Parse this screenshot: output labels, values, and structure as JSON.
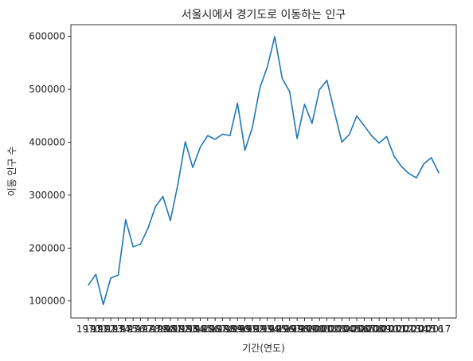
{
  "chart_data": {
    "type": "line",
    "title": "서울시에서 경기도로 이동하는 인구",
    "xlabel": "기간(연도)",
    "ylabel": "이동 인구 수",
    "x": [
      "1970",
      "1971",
      "1972",
      "1973",
      "1974",
      "1975",
      "1976",
      "1977",
      "1978",
      "1979",
      "1980",
      "1981",
      "1982",
      "1983",
      "1984",
      "1985",
      "1986",
      "1987",
      "1988",
      "1989",
      "1990",
      "1991",
      "1992",
      "1993",
      "1994",
      "1995",
      "1996",
      "1997",
      "1998",
      "1999",
      "2000",
      "2001",
      "2002",
      "2003",
      "2004",
      "2005",
      "2006",
      "2007",
      "2008",
      "2009",
      "2010",
      "2011",
      "2012",
      "2013",
      "2014",
      "2015",
      "2016",
      "2017"
    ],
    "series": [
      {
        "values": [
          130149,
          150313,
          93333,
          143234,
          149045,
          253705,
          202276,
          207722,
          237684,
          278411,
          297539,
          252073,
          320174,
          400875,
          352238,
          390265,
          412535,
          405495,
          415188,
          412535,
          473889,
          384714,
          428344,
          502584,
          542204,
          599411,
          520566,
          495454,
          407050,
          471841,
          435573,
          499575,
          516765,
          457656,
          400206,
          414621,
          449632,
          431075,
          412011,
          398420,
          410735,
          373771,
          354135,
          340801,
          332785,
          359337,
          370760,
          342433
        ]
      }
    ],
    "yticks": [
      100000,
      200000,
      300000,
      400000,
      500000,
      600000
    ],
    "ylim": [
      68000,
      622000
    ],
    "grid": false,
    "legend": "none",
    "line_color": "#1f77b4"
  }
}
